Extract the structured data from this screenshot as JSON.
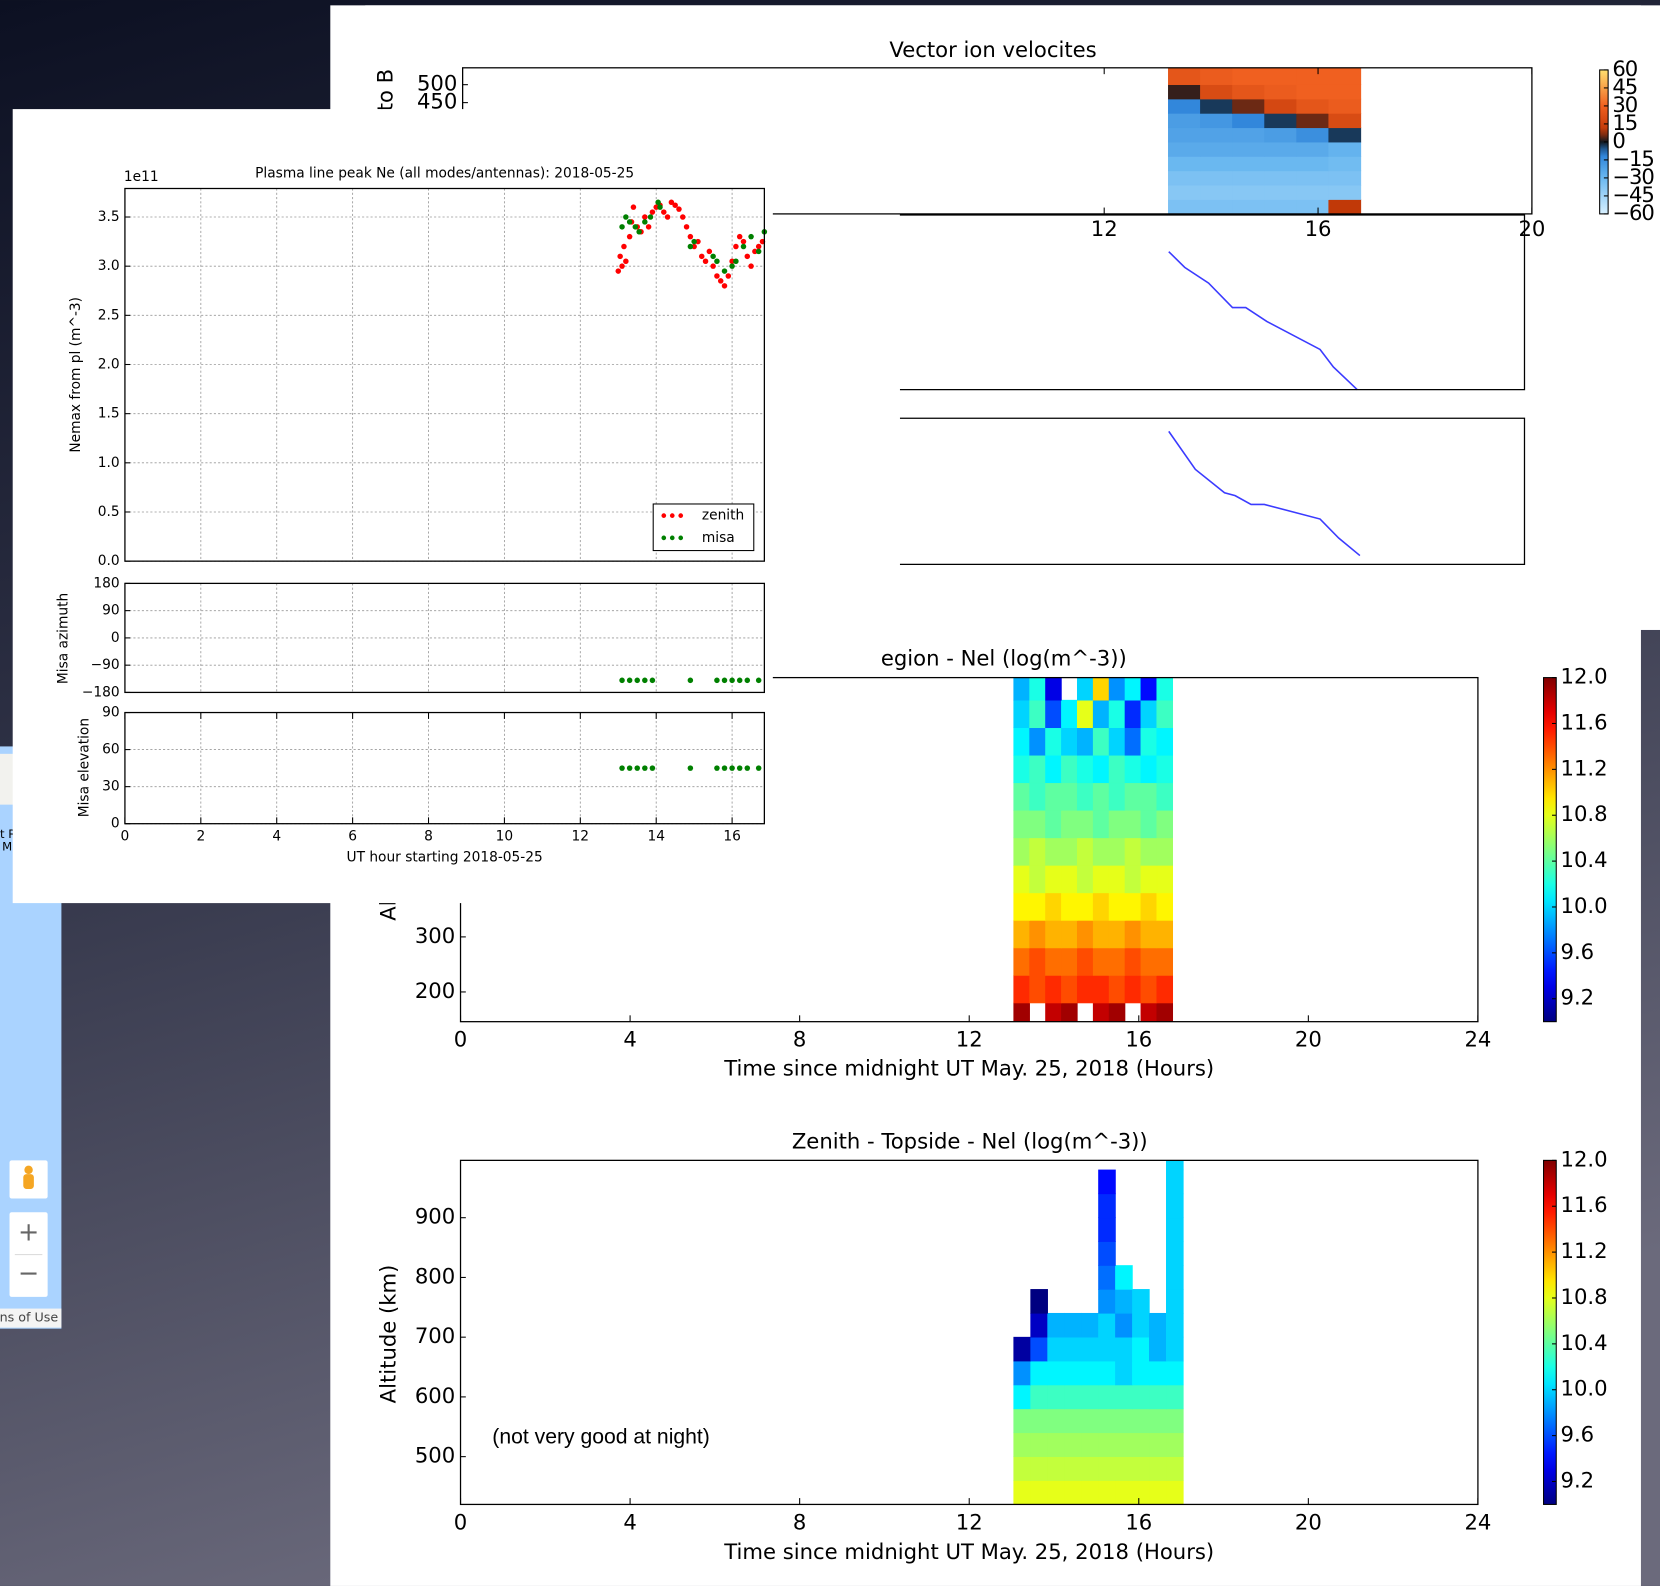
{
  "chart_data": [
    {
      "type": "heatmap",
      "title": "Vector ion velocites",
      "ylabel": "to B",
      "x_edges": [
        13.2,
        13.8,
        14.4,
        15.0,
        15.6,
        16.2,
        16.8
      ],
      "y_edges": [
        140,
        180,
        220,
        260,
        300,
        340,
        380,
        420,
        460,
        500,
        547
      ],
      "z": [
        [
          -35,
          -35,
          -35,
          -35,
          -35,
          10
        ],
        [
          -38,
          -38,
          -38,
          -38,
          -38,
          -38
        ],
        [
          -35,
          -35,
          -35,
          -35,
          -35,
          -35
        ],
        [
          -30,
          -30,
          -30,
          -30,
          -30,
          -32
        ],
        [
          -25,
          -25,
          -25,
          -25,
          -25,
          -28
        ],
        [
          -22,
          -22,
          -22,
          -20,
          -15,
          -3
        ],
        [
          -20,
          -18,
          -12,
          -3,
          5,
          20
        ],
        [
          -12,
          -3,
          5,
          18,
          25,
          28
        ],
        [
          2,
          20,
          25,
          28,
          30,
          30
        ],
        [
          25,
          28,
          30,
          30,
          30,
          30
        ]
      ],
      "xlim": [
        0,
        20
      ],
      "ylim": [
        140,
        547
      ],
      "xticks": [
        12,
        16,
        20
      ],
      "yticks": [
        450,
        500
      ],
      "colormap": "diverging",
      "clim": [
        -60,
        60
      ],
      "cticks": [
        60,
        45,
        30,
        15,
        0,
        {
          "value": -15,
          "label": "−15"
        },
        {
          "value": -30,
          "label": "−30"
        },
        {
          "value": -45,
          "label": "−45"
        },
        {
          "value": -60,
          "label": "−60"
        }
      ]
    },
    {
      "type": "line",
      "color": "#3b3bff",
      "x": [
        13.3,
        13.6,
        14.05,
        14.5,
        14.75,
        15.15,
        16.15,
        16.4,
        16.85
      ],
      "values": [
        0.79,
        0.7,
        0.61,
        0.47,
        0.47,
        0.39,
        0.23,
        0.13,
        0.0
      ],
      "xlim": [
        0,
        20
      ],
      "ylim": [
        0,
        1
      ]
    },
    {
      "type": "line",
      "color": "#3b3bff",
      "x": [
        13.3,
        13.8,
        14.35,
        14.55,
        14.85,
        15.1,
        16.15,
        16.5,
        16.9
      ],
      "values": [
        0.91,
        0.65,
        0.49,
        0.47,
        0.41,
        0.41,
        0.31,
        0.18,
        0.06
      ],
      "xlim": [
        0,
        20
      ],
      "ylim": [
        0,
        1
      ]
    },
    {
      "type": "heatmap",
      "title": "egion - Nel (log(m^-3))",
      "ylabel": "Al",
      "xlabel": "Time since midnight UT May. 25, 2018 (Hours)",
      "x_edges": [
        13.05,
        13.425,
        13.8,
        14.175,
        14.55,
        14.925,
        15.3,
        15.675,
        16.05,
        16.425,
        16.8
      ],
      "y_edges": [
        146,
        180,
        230,
        280,
        330,
        380,
        430,
        480,
        530,
        580,
        630,
        680,
        730,
        771
      ],
      "z": [
        [
          11.9,
          null,
          11.8,
          11.9,
          null,
          11.8,
          11.9,
          null,
          11.8,
          11.9
        ],
        [
          11.5,
          11.4,
          11.5,
          11.4,
          11.5,
          11.5,
          11.4,
          11.5,
          11.4,
          11.5
        ],
        [
          11.3,
          11.4,
          11.3,
          11.3,
          11.4,
          11.3,
          11.3,
          11.4,
          11.3,
          11.3
        ],
        [
          11.1,
          11.2,
          11.1,
          11.1,
          11.2,
          11.1,
          11.1,
          11.2,
          11.1,
          11.1
        ],
        [
          10.9,
          10.9,
          11.0,
          10.9,
          10.9,
          11.0,
          10.9,
          10.9,
          11.0,
          10.9
        ],
        [
          10.8,
          10.7,
          10.8,
          10.8,
          10.7,
          10.8,
          10.8,
          10.7,
          10.8,
          10.8
        ],
        [
          10.6,
          10.7,
          10.6,
          10.6,
          10.7,
          10.6,
          10.6,
          10.7,
          10.6,
          10.6
        ],
        [
          10.5,
          10.5,
          10.4,
          10.5,
          10.5,
          10.4,
          10.5,
          10.5,
          10.4,
          10.5
        ],
        [
          10.4,
          10.3,
          10.4,
          10.4,
          10.3,
          10.4,
          10.3,
          10.4,
          10.4,
          10.3
        ],
        [
          10.2,
          10.3,
          10.1,
          10.3,
          10.2,
          10.1,
          10.3,
          10.2,
          10.1,
          10.2
        ],
        [
          10.1,
          9.8,
          10.2,
          10.0,
          9.9,
          10.3,
          10.0,
          9.7,
          10.2,
          10.1
        ],
        [
          10.0,
          10.3,
          9.6,
          10.1,
          10.8,
          9.9,
          10.2,
          9.5,
          10.0,
          10.3
        ],
        [
          9.9,
          10.2,
          9.3,
          null,
          10.0,
          11.0,
          9.8,
          10.1,
          9.4,
          10.2
        ]
      ],
      "xlim": [
        0,
        24
      ],
      "ylim": [
        146,
        771
      ],
      "xticks": [
        0,
        4,
        8,
        12,
        16,
        20,
        24
      ],
      "yticks": [
        200,
        300
      ],
      "colormap": "jet",
      "clim": [
        9.0,
        12.0
      ],
      "cticks": [
        {
          "value": 12,
          "label": "12.0"
        },
        11.6,
        11.2,
        10.8,
        10.4,
        {
          "value": 10,
          "label": "10.0"
        },
        9.6,
        9.2
      ]
    },
    {
      "type": "heatmap",
      "title": "Zenith - Topside - Nel (log(m^-3))",
      "ylabel": "Altitude (km)",
      "xlabel": "Time since midnight UT May. 25, 2018 (Hours)",
      "annotation": "(not very good at night)",
      "x_edges": [
        13.05,
        13.45,
        13.85,
        14.25,
        14.65,
        15.05,
        15.45,
        15.85,
        16.25,
        16.65,
        17.05
      ],
      "y_edges": [
        420,
        460,
        500,
        540,
        580,
        620,
        660,
        700,
        740,
        780,
        820,
        860,
        900,
        940,
        980,
        1000
      ],
      "z": [
        [
          10.8,
          10.8,
          10.8,
          10.8,
          10.8,
          10.8,
          10.8,
          10.8,
          10.8,
          10.8
        ],
        [
          10.7,
          10.7,
          10.7,
          10.7,
          10.7,
          10.7,
          10.7,
          10.7,
          10.7,
          10.7
        ],
        [
          10.6,
          10.6,
          10.6,
          10.6,
          10.6,
          10.6,
          10.6,
          10.6,
          10.6,
          10.6
        ],
        [
          10.5,
          10.5,
          10.5,
          10.5,
          10.5,
          10.5,
          10.5,
          10.5,
          10.5,
          10.5
        ],
        [
          10.1,
          10.3,
          10.3,
          10.3,
          10.3,
          10.3,
          10.3,
          10.3,
          10.3,
          10.3
        ],
        [
          9.8,
          10.1,
          10.1,
          10.1,
          10.1,
          10.1,
          10.0,
          10.1,
          10.1,
          10.1
        ],
        [
          9.1,
          9.6,
          10.0,
          10.0,
          10.0,
          10.0,
          10.0,
          10.1,
          9.9,
          10.0
        ],
        [
          null,
          9.2,
          9.9,
          9.9,
          9.9,
          10.0,
          9.8,
          10.0,
          9.9,
          10.0
        ],
        [
          null,
          9.0,
          null,
          null,
          null,
          9.8,
          9.9,
          10.0,
          null,
          10.0
        ],
        [
          null,
          null,
          null,
          null,
          null,
          9.7,
          10.1,
          null,
          null,
          10.0
        ],
        [
          null,
          null,
          null,
          null,
          null,
          9.6,
          null,
          null,
          null,
          10.0
        ],
        [
          null,
          null,
          null,
          null,
          null,
          9.5,
          null,
          null,
          null,
          10.0
        ],
        [
          null,
          null,
          null,
          null,
          null,
          9.5,
          null,
          null,
          null,
          10.0
        ],
        [
          null,
          null,
          null,
          null,
          null,
          9.4,
          null,
          null,
          null,
          10.0
        ],
        [
          null,
          null,
          null,
          null,
          null,
          null,
          null,
          null,
          null,
          10.0
        ]
      ],
      "xlim": [
        0,
        24
      ],
      "ylim": [
        420,
        996
      ],
      "xticks": [
        0,
        4,
        8,
        12,
        16,
        20,
        24
      ],
      "yticks": [
        500,
        600,
        700,
        800,
        900
      ],
      "colormap": "jet",
      "clim": [
        9.0,
        12.0
      ],
      "cticks": [
        {
          "value": 12,
          "label": "12.0"
        },
        11.6,
        11.2,
        10.8,
        10.4,
        {
          "value": 10,
          "label": "10.0"
        },
        9.6,
        9.2
      ]
    },
    {
      "type": "scatter",
      "title": "Plasma line peak Ne (all modes/antennas): 2018-05-25",
      "offset_label": "1e11",
      "ylabel": "Nemax from pl (m^-3)",
      "series": [
        {
          "name": "zenith",
          "color": "#ff0000",
          "x": [
            13.0,
            13.05,
            13.1,
            13.15,
            13.2,
            13.3,
            13.35,
            13.4,
            13.5,
            13.6,
            13.7,
            13.8,
            13.9,
            14.0,
            14.1,
            14.2,
            14.3,
            14.4,
            14.5,
            14.6,
            14.7,
            14.8,
            14.9,
            15.0,
            15.1,
            15.2,
            15.3,
            15.4,
            15.5,
            15.6,
            15.7,
            15.8,
            15.9,
            16.0,
            16.1,
            16.2,
            16.3,
            16.4,
            16.5,
            16.6,
            16.7,
            16.8
          ],
          "values": [
            2.95,
            3.1,
            3.0,
            3.2,
            3.05,
            3.3,
            3.45,
            3.6,
            3.4,
            3.35,
            3.5,
            3.4,
            3.55,
            3.6,
            3.62,
            3.55,
            3.5,
            3.65,
            3.62,
            3.58,
            3.5,
            3.4,
            3.3,
            3.2,
            3.25,
            3.1,
            3.05,
            3.15,
            3.0,
            2.9,
            2.85,
            2.8,
            2.9,
            3.05,
            3.2,
            3.3,
            3.25,
            3.1,
            3.0,
            3.15,
            3.2,
            3.25
          ]
        },
        {
          "name": "misa",
          "color": "#008000",
          "x": [
            13.1,
            13.2,
            13.3,
            13.45,
            13.55,
            13.7,
            13.85,
            14.05,
            14.1,
            14.9,
            15.0,
            15.5,
            15.6,
            15.8,
            16.0,
            16.1,
            16.3,
            16.5,
            16.7,
            16.85
          ],
          "values": [
            3.4,
            3.5,
            3.45,
            3.4,
            3.35,
            3.45,
            3.5,
            3.65,
            3.6,
            3.2,
            3.25,
            3.1,
            3.05,
            2.95,
            3.0,
            3.05,
            3.2,
            3.3,
            3.15,
            3.35
          ]
        }
      ],
      "xlim": [
        0,
        16.85
      ],
      "ylim": [
        0,
        3.79
      ],
      "yticks": [
        {
          "value": 0,
          "label": "0.0"
        },
        0.5,
        {
          "value": 1,
          "label": "1.0"
        },
        1.5,
        {
          "value": 2,
          "label": "2.0"
        },
        2.5,
        {
          "value": 3,
          "label": "3.0"
        },
        3.5
      ],
      "grid": true,
      "legend": "lower right"
    },
    {
      "type": "scatter",
      "ylabel": "Misa azimuth",
      "series": [
        {
          "color": "#008000",
          "x": [
            13.1,
            13.3,
            13.5,
            13.7,
            13.9,
            14.9,
            15.6,
            15.8,
            16.0,
            16.2,
            16.4,
            16.7
          ],
          "values": [
            -140,
            -140,
            -140,
            -140,
            -140,
            -140,
            -140,
            -140,
            -140,
            -140,
            -140,
            -140
          ]
        }
      ],
      "xlim": [
        0,
        16.85
      ],
      "ylim": [
        -180,
        180
      ],
      "yticks": [
        {
          "value": -180,
          "label": "−180"
        },
        {
          "value": -90,
          "label": "−90"
        },
        0,
        90,
        180
      ],
      "grid": true
    },
    {
      "type": "scatter",
      "ylabel": "Misa elevation",
      "xlabel": "UT hour starting 2018-05-25",
      "series": [
        {
          "color": "#008000",
          "x": [
            13.1,
            13.3,
            13.5,
            13.7,
            13.9,
            14.9,
            15.6,
            15.8,
            16.0,
            16.2,
            16.4,
            16.7
          ],
          "values": [
            45,
            45,
            45,
            45,
            45,
            45,
            45,
            45,
            45,
            45,
            45,
            45
          ]
        }
      ],
      "xlim": [
        0,
        16.85
      ],
      "ylim": [
        0,
        90
      ],
      "xticks": [
        0,
        2,
        4,
        6,
        8,
        10,
        12,
        14,
        16
      ],
      "yticks": [
        0,
        30,
        60,
        90
      ],
      "grid": true
    }
  ],
  "map": {
    "labels": [
      "t R",
      "M"
    ],
    "zoom_in": "+",
    "zoom_out": "−",
    "terms": "ns of Use"
  }
}
